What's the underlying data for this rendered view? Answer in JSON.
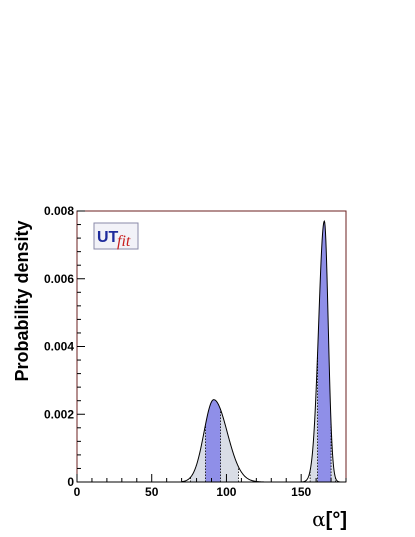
{
  "chart_data": {
    "type": "area",
    "title": "",
    "xlabel_symbol": "α",
    "xlabel_unit": "[°]",
    "ylabel": "Probability density",
    "xlim": [
      0,
      180
    ],
    "ylim": [
      0,
      0.008
    ],
    "x_ticks": [
      0,
      50,
      100,
      150
    ],
    "y_ticks": [
      0,
      0.002,
      0.004,
      0.006,
      0.008
    ],
    "y_tick_labels": [
      "0",
      "0.002",
      "0.004",
      "0.006",
      "0.008"
    ],
    "logo": {
      "text_ut": "UT",
      "text_fit": "fit"
    },
    "peaks": [
      {
        "name": "",
        "center": 91.5,
        "height": 0.00243,
        "sigma_left": 6.5,
        "sigma_right": 9.0,
        "range": [
          70,
          125
        ],
        "band_68": [
          86,
          96
        ],
        "band_95": [
          76,
          108
        ]
      },
      {
        "name": "",
        "center": 165.5,
        "height": 0.0077,
        "sigma_left": 3.8,
        "sigma_right": 2.6,
        "range": [
          145,
          176
        ],
        "band_68": [
          161,
          170
        ],
        "band_95": [
          156,
          173
        ]
      }
    ],
    "colors": {
      "curve": "#000000",
      "band_68": "#8f8fe8",
      "band_95": "#d9dde6",
      "frame": "#6b1f1f",
      "logo_blue": "#1e2b9c",
      "logo_red": "#c81e1e",
      "logo_bg": "#f2f2f8"
    }
  }
}
